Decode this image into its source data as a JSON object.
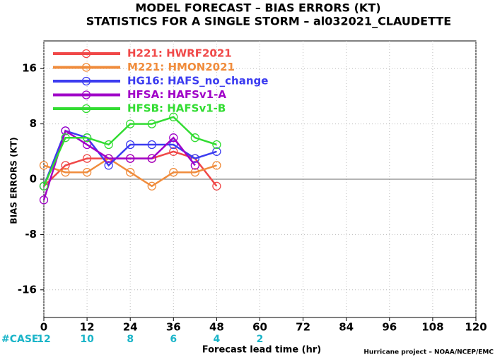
{
  "chart_data": {
    "type": "line",
    "title": "MODEL FORECAST – BIAS ERRORS (KT)",
    "subtitle": "STATISTICS FOR A SINGLE STORM – al032021_CLAUDETTE",
    "y_label": "BIAS ERRORS (KT)",
    "x_label": "Forecast lead time (hr)",
    "credit": "Hurricane project – NOAA/NCEP/EMC",
    "x": [
      0,
      6,
      12,
      18,
      24,
      30,
      36,
      42,
      48
    ],
    "series": [
      {
        "name": "H221: HWRF2021",
        "color": "#f04848",
        "values": [
          -1,
          2,
          3,
          3,
          3,
          3,
          4,
          3,
          -1
        ]
      },
      {
        "name": "M221: HMON2021",
        "color": "#f08c3c",
        "values": [
          2,
          1,
          1,
          3,
          1,
          -1,
          1,
          1,
          2
        ]
      },
      {
        "name": "HG16: HAFS_no_change",
        "color": "#3c3cf0",
        "values": [
          -1,
          7,
          6,
          2,
          5,
          5,
          5,
          3,
          4
        ]
      },
      {
        "name": "HFSA: HAFSv1-A",
        "color": "#a000c8",
        "values": [
          -3,
          7,
          5,
          3,
          3,
          3,
          6,
          2,
          null
        ]
      },
      {
        "name": "HFSB: HAFSv1-B",
        "color": "#32dc32",
        "values": [
          -1,
          6,
          6,
          5,
          8,
          8,
          9,
          6,
          5
        ]
      }
    ],
    "case_row": {
      "label": "#CASE",
      "color": "#19b4c8",
      "x": [
        0,
        12,
        24,
        36,
        48,
        60
      ],
      "values": [
        12,
        10,
        8,
        6,
        4,
        2
      ]
    },
    "xlim": [
      0,
      120
    ],
    "xticks": [
      0,
      12,
      24,
      36,
      48,
      60,
      72,
      84,
      96,
      108,
      120
    ],
    "ylim": [
      -20,
      20
    ],
    "yticks": [
      -16,
      -8,
      0,
      8,
      16
    ],
    "grid": true,
    "legend": "upper left"
  }
}
